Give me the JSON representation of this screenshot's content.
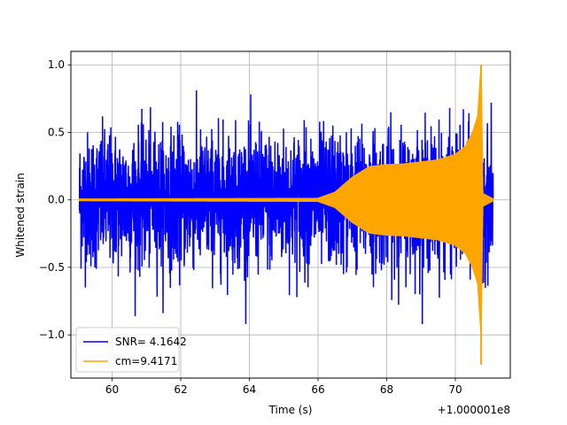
{
  "chart_data": {
    "type": "line",
    "title": "",
    "xlabel": "Time (s)",
    "ylabel": "Whitened strain",
    "x_offset_label": "+1.000001e8",
    "xlim": [
      58.8,
      71.6
    ],
    "ylim": [
      -1.32,
      1.1
    ],
    "xticks": [
      60,
      62,
      64,
      66,
      68,
      70
    ],
    "xtick_labels": [
      "60",
      "62",
      "64",
      "66",
      "68",
      "70"
    ],
    "yticks": [
      -1.0,
      -0.5,
      0.0,
      0.5,
      1.0
    ],
    "ytick_labels": [
      "−1.0",
      "−0.5",
      "0.0",
      "0.5",
      "1.0"
    ],
    "grid": true,
    "legend_position": "lower-left",
    "series": [
      {
        "name": "SNR= 4.1642",
        "color": "#0000ff",
        "kind": "noise",
        "x_range": [
          59.05,
          71.1
        ],
        "typical_amplitude": 0.45,
        "max_value": 0.98,
        "min_value": -0.92
      },
      {
        "name": "cm=9.4171",
        "color": "#ffa500",
        "kind": "chirp",
        "x_range": [
          59.05,
          71.1
        ],
        "merger_time": 70.75,
        "peak_positive": 1.0,
        "peak_negative": -1.22,
        "envelope": [
          {
            "x": 59.05,
            "y": 0.01
          },
          {
            "x": 66.0,
            "y": 0.015
          },
          {
            "x": 66.5,
            "y": 0.06
          },
          {
            "x": 67.0,
            "y": 0.17
          },
          {
            "x": 67.5,
            "y": 0.25
          },
          {
            "x": 68.0,
            "y": 0.265
          },
          {
            "x": 68.5,
            "y": 0.27
          },
          {
            "x": 69.0,
            "y": 0.285
          },
          {
            "x": 69.5,
            "y": 0.3
          },
          {
            "x": 70.0,
            "y": 0.34
          },
          {
            "x": 70.3,
            "y": 0.4
          },
          {
            "x": 70.5,
            "y": 0.5
          },
          {
            "x": 70.65,
            "y": 0.62
          },
          {
            "x": 70.75,
            "y": 1.0
          },
          {
            "x": 70.8,
            "y": 0.05
          },
          {
            "x": 71.1,
            "y": 0.01
          }
        ]
      }
    ]
  }
}
